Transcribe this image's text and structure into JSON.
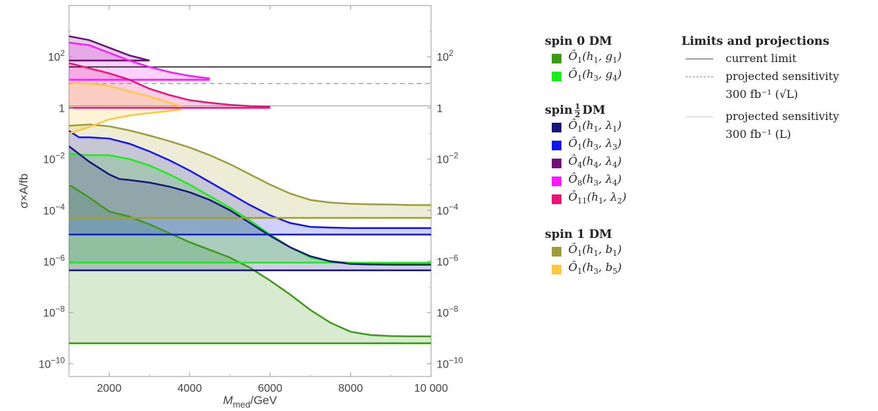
{
  "chart_data": {
    "type": "area",
    "title": "",
    "xlabel_main": "M",
    "xlabel_sub": "med",
    "xlabel_unit": "/GeV",
    "ylabel": "σ×A/fb",
    "xlim": [
      1000,
      10000
    ],
    "ylim_log10": [
      -10.5,
      4
    ],
    "x_scale": "linear",
    "y_scale": "log",
    "x_ticks": [
      2000,
      4000,
      6000,
      8000,
      10000
    ],
    "x_tick_labels": [
      "2000",
      "4000",
      "6000",
      "8000",
      "10 000"
    ],
    "y_ticks_exp": [
      -10,
      -8,
      -6,
      -4,
      -2,
      0,
      2
    ],
    "y_tick_labels": [
      {
        "base": "10",
        "exp": "−10"
      },
      {
        "base": "10",
        "exp": "−8"
      },
      {
        "base": "10",
        "exp": "−6"
      },
      {
        "base": "10",
        "exp": "−4"
      },
      {
        "base": "10",
        "exp": "−2"
      },
      {
        "base": "1",
        "exp": ""
      },
      {
        "base": "10",
        "exp": "2"
      }
    ],
    "grid": false,
    "legend_position": "right",
    "series": [
      {
        "group": "spin 0 DM",
        "name": "Ô1(h1,g1)",
        "color": "#3c9b14",
        "x": [
          1000,
          1500,
          2000,
          2500,
          3000,
          3500,
          4000,
          4500,
          5000,
          5500,
          6000,
          6500,
          7000,
          7500,
          8000,
          8500,
          9000,
          9500,
          10000
        ],
        "log10_upper": [
          -3.0,
          -3.5,
          -4.05,
          -4.25,
          -4.55,
          -4.9,
          -5.25,
          -5.55,
          -5.85,
          -6.25,
          -6.75,
          -7.3,
          -7.9,
          -8.4,
          -8.75,
          -8.88,
          -8.92,
          -8.93,
          -8.93
        ],
        "log10_lower": -9.2
      },
      {
        "group": "spin 0 DM",
        "name": "Ô1(h3,g4)",
        "color": "#16f016",
        "x": [
          1000,
          1500,
          2000,
          2500,
          3000,
          3500,
          4000,
          4500,
          5000,
          5500,
          6000,
          6500,
          7000,
          7500,
          8000,
          8500,
          9000,
          9500,
          10000
        ],
        "log10_upper": [
          -1.8,
          -1.85,
          -1.85,
          -2.0,
          -2.25,
          -2.6,
          -3.0,
          -3.45,
          -3.9,
          -4.4,
          -4.95,
          -5.45,
          -5.85,
          -6.0,
          -6.05,
          -6.07,
          -6.08,
          -6.08,
          -6.08
        ],
        "log10_lower": -6.05
      },
      {
        "group": "spin ½ DM",
        "name": "Ô1(h1,λ1)",
        "color": "#16167a",
        "x": [
          1000,
          1500,
          2000,
          2250,
          2500,
          3000,
          3500,
          4000,
          4500,
          5000,
          5500,
          6000,
          6500,
          7000,
          7500,
          8000,
          8500,
          9000,
          9500,
          10000
        ],
        "log10_upper": [
          -1.5,
          -2.1,
          -2.6,
          -2.78,
          -2.82,
          -2.92,
          -3.08,
          -3.3,
          -3.6,
          -4.0,
          -4.5,
          -5.0,
          -5.45,
          -5.8,
          -6.0,
          -6.1,
          -6.12,
          -6.13,
          -6.13,
          -6.13
        ],
        "log10_lower": -6.35
      },
      {
        "group": "spin ½ DM",
        "name": "Ô1(h3,λ3)",
        "color": "#1414ee",
        "x": [
          1000,
          1250,
          1500,
          2000,
          2500,
          3000,
          3500,
          4000,
          4500,
          5000,
          5500,
          6000,
          6500,
          7000,
          7500,
          8000,
          8500,
          9000,
          9500,
          10000
        ],
        "log10_upper": [
          -0.9,
          -1.15,
          -1.15,
          -1.2,
          -1.4,
          -1.7,
          -2.05,
          -2.45,
          -2.9,
          -3.35,
          -3.8,
          -4.2,
          -4.5,
          -4.65,
          -4.68,
          -4.7,
          -4.7,
          -4.7,
          -4.7,
          -4.7
        ],
        "log10_lower": -4.95
      },
      {
        "group": "spin ½ DM",
        "name": "Ô4(h4,λ4)",
        "color": "#6f0f7a",
        "x": [
          1000,
          1500,
          2000,
          2500,
          3000
        ],
        "log10_upper": [
          2.8,
          2.65,
          2.35,
          2.05,
          1.85
        ],
        "log10_lower": 1.85
      },
      {
        "group": "spin ½ DM",
        "name": "Ô8(h3,λ4)",
        "color": "#ff18ff",
        "x": [
          1000,
          1500,
          2000,
          2500,
          3000,
          3500,
          4000,
          4500
        ],
        "log10_upper": [
          2.55,
          2.45,
          2.15,
          1.85,
          1.6,
          1.4,
          1.25,
          1.15
        ],
        "log10_lower": 1.1
      },
      {
        "group": "spin ½ DM",
        "name": "Ô11(h1,λ2)",
        "color": "#f0107a",
        "x": [
          1000,
          1500,
          2000,
          2500,
          3000,
          3500,
          4000,
          4500,
          5000,
          5500,
          6000
        ],
        "log10_upper": [
          1.75,
          1.55,
          1.35,
          1.1,
          0.75,
          0.5,
          0.3,
          0.2,
          0.12,
          0.07,
          0.05
        ],
        "log10_lower": 0.0
      },
      {
        "group": "spin 1 DM",
        "name": "Ô1(h1,b1)",
        "color": "#9e9e38",
        "x": [
          1000,
          1500,
          2000,
          2500,
          3000,
          3500,
          4000,
          4500,
          5000,
          5500,
          6000,
          6500,
          7000,
          7500,
          8000,
          8500,
          9000,
          9500,
          10000
        ],
        "log10_upper": [
          -0.7,
          -0.65,
          -0.72,
          -0.88,
          -1.08,
          -1.3,
          -1.55,
          -1.85,
          -2.2,
          -2.6,
          -3.0,
          -3.35,
          -3.6,
          -3.7,
          -3.75,
          -3.77,
          -3.78,
          -3.8,
          -3.8
        ],
        "log10_lower": -4.3
      },
      {
        "group": "spin 1 DM",
        "name": "Ô1(h3,b5)",
        "color": "#ffc83c",
        "x": [
          1000,
          1500,
          2000,
          2500,
          3000,
          3500,
          3800
        ],
        "log10_upper": [
          0.98,
          0.95,
          0.85,
          0.65,
          0.45,
          0.2,
          0.05
        ],
        "log10_lower_x": [
          1000,
          1500,
          2000,
          2500,
          3000,
          3500,
          3800
        ],
        "log10_lower": [
          -1.0,
          -0.75,
          -0.45,
          -0.3,
          -0.2,
          -0.12,
          -0.05
        ]
      }
    ],
    "limit_lines_log10": [
      1.6,
      0.95,
      0.08
    ],
    "legend_groups": [
      {
        "title": "spin 0 DM",
        "items": [
          {
            "op": "Ô",
            "sub": "1",
            "args": "(h",
            "a1": "1",
            "mid": ", g",
            "a2": "1",
            "color": "#3c9b14"
          },
          {
            "op": "Ô",
            "sub": "1",
            "args": "(h",
            "a1": "3",
            "mid": ", g",
            "a2": "4",
            "color": "#16f016"
          }
        ]
      },
      {
        "title_pre": "spin",
        "title_num": "1",
        "title_den": "2",
        "title_post": "DM",
        "items": [
          {
            "op": "Ô",
            "sub": "1",
            "args": "(h",
            "a1": "1",
            "mid": ", λ",
            "a2": "1",
            "color": "#16167a"
          },
          {
            "op": "Ô",
            "sub": "1",
            "args": "(h",
            "a1": "3",
            "mid": ", λ",
            "a2": "3",
            "color": "#1414ee"
          },
          {
            "op": "Ô",
            "sub": "4",
            "args": "(h",
            "a1": "4",
            "mid": ", λ",
            "a2": "4",
            "color": "#6f0f7a"
          },
          {
            "op": "Ô",
            "sub": "8",
            "args": "(h",
            "a1": "3",
            "mid": ", λ",
            "a2": "4",
            "color": "#ff18ff"
          },
          {
            "op": "Ô",
            "sub": "11",
            "args": "(h",
            "a1": "1",
            "mid": ", λ",
            "a2": "2",
            "color": "#f0107a"
          }
        ]
      },
      {
        "title": "spin 1 DM",
        "items": [
          {
            "op": "Ô",
            "sub": "1",
            "args": "(h",
            "a1": "1",
            "mid": ", b",
            "a2": "1",
            "color": "#9e9e38"
          },
          {
            "op": "Ô",
            "sub": "1",
            "args": "(h",
            "a1": "3",
            "mid": ", b",
            "a2": "5",
            "color": "#ffc83c"
          }
        ]
      }
    ],
    "limits_legend": {
      "title": "Limits and projections",
      "items": [
        {
          "style": "solid",
          "text": "current limit",
          "sub": ""
        },
        {
          "style": "dashed",
          "text": "projected sensitivity",
          "sub": "300 fb⁻¹ (√L)"
        },
        {
          "style": "thin",
          "text": "projected sensitivity",
          "sub": "300 fb⁻¹ (L)"
        }
      ]
    }
  }
}
